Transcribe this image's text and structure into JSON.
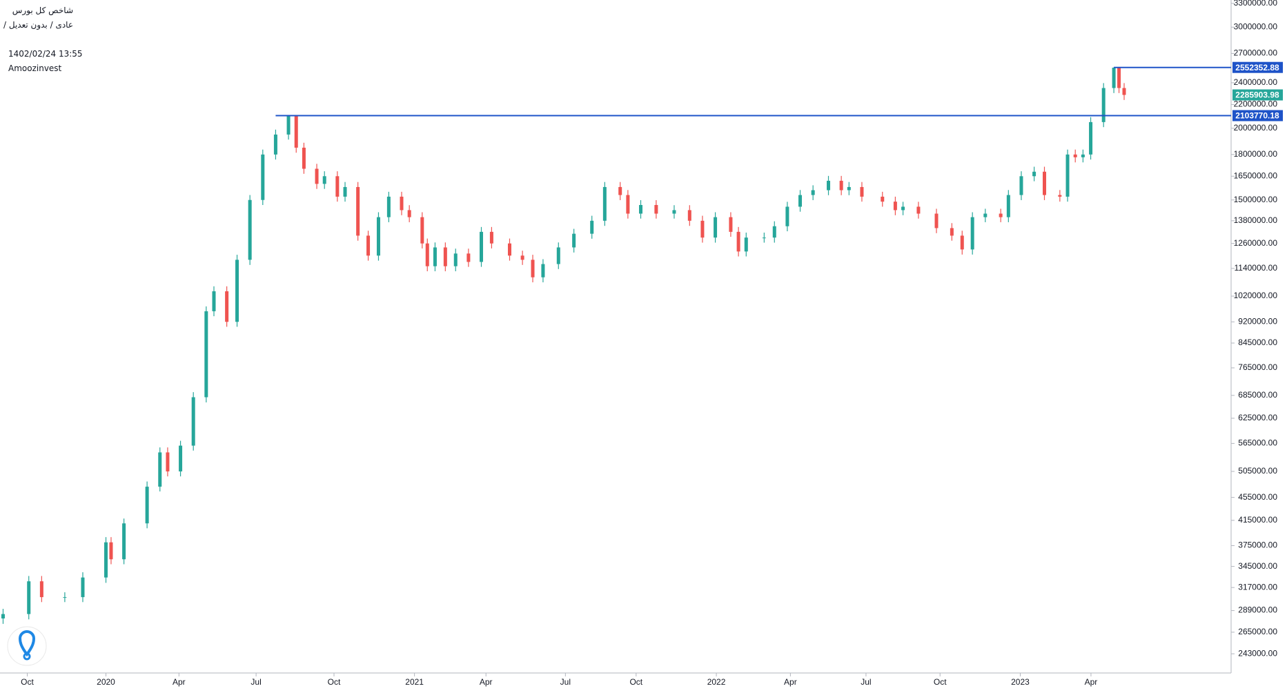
{
  "chart_data": {
    "type": "candlestick",
    "title": "شاخص کل بورس",
    "subtitle": "عادی / بدون تعدیل /",
    "timestamp": "1402/02/24 13:55",
    "watermark": "Amoozinvest",
    "log_scale": true,
    "up_color": "#26a69a",
    "down_color": "#ef5350",
    "xlim": [
      -4.12,
      43.76
    ],
    "ylim": [
      225000,
      3345000
    ],
    "xticks": [
      {
        "value": -3.06,
        "label": "Oct"
      },
      {
        "value": 0,
        "label": "2020"
      },
      {
        "value": 2.84,
        "label": "Apr"
      },
      {
        "value": 5.84,
        "label": "Jul"
      },
      {
        "value": 8.87,
        "label": "Oct"
      },
      {
        "value": 12,
        "label": "2021"
      },
      {
        "value": 14.78,
        "label": "Apr"
      },
      {
        "value": 17.87,
        "label": "Jul"
      },
      {
        "value": 20.62,
        "label": "Oct"
      },
      {
        "value": 23.74,
        "label": "2022"
      },
      {
        "value": 26.62,
        "label": "Apr"
      },
      {
        "value": 29.56,
        "label": "Jul"
      },
      {
        "value": 32.44,
        "label": "Oct"
      },
      {
        "value": 35.56,
        "label": "2023"
      },
      {
        "value": 38.31,
        "label": "Apr"
      }
    ],
    "yticks": [
      {
        "value": 3300000,
        "label": "3300000.00"
      },
      {
        "value": 3000000,
        "label": "3000000.00"
      },
      {
        "value": 2700000,
        "label": "2700000.00"
      },
      {
        "value": 2400000,
        "label": "2400000.00"
      },
      {
        "value": 2200000,
        "label": "2200000.00"
      },
      {
        "value": 2000000,
        "label": "2000000.00"
      },
      {
        "value": 1800000,
        "label": "1800000.00"
      },
      {
        "value": 1650000,
        "label": "1650000.00"
      },
      {
        "value": 1500000,
        "label": "1500000.00"
      },
      {
        "value": 1380000,
        "label": "1380000.00"
      },
      {
        "value": 1260000,
        "label": "1260000.00"
      },
      {
        "value": 1140000,
        "label": "1140000.00"
      },
      {
        "value": 1020000,
        "label": "1020000.00"
      },
      {
        "value": 920000,
        "label": "920000.00"
      },
      {
        "value": 845000,
        "label": "845000.00"
      },
      {
        "value": 765000,
        "label": "765000.00"
      },
      {
        "value": 685000,
        "label": "685000.00"
      },
      {
        "value": 625000,
        "label": "625000.00"
      },
      {
        "value": 565000,
        "label": "565000.00"
      },
      {
        "value": 505000,
        "label": "505000.00"
      },
      {
        "value": 455000,
        "label": "455000.00"
      },
      {
        "value": 415000,
        "label": "415000.00"
      },
      {
        "value": 375000,
        "label": "375000.00"
      },
      {
        "value": 345000,
        "label": "345000.00"
      },
      {
        "value": 317000,
        "label": "317000.00"
      },
      {
        "value": 289000,
        "label": "289000.00"
      },
      {
        "value": 265000,
        "label": "265000.00"
      },
      {
        "value": 243000,
        "label": "243000.00"
      }
    ],
    "x": [
      -4.0,
      -3.0,
      -2.5,
      -1.6,
      -0.9,
      0.0,
      0.2,
      0.7,
      1.6,
      2.1,
      2.4,
      2.9,
      3.4,
      3.9,
      4.2,
      4.7,
      5.1,
      5.6,
      6.1,
      6.6,
      7.1,
      7.4,
      7.7,
      8.2,
      8.5,
      9.0,
      9.3,
      9.8,
      10.2,
      10.6,
      11.0,
      11.5,
      11.8,
      12.3,
      12.5,
      12.8,
      13.2,
      13.6,
      14.1,
      14.6,
      15.0,
      15.7,
      16.2,
      16.6,
      17.0,
      17.6,
      18.2,
      18.9,
      19.4,
      20.0,
      20.3,
      20.8,
      21.4,
      22.1,
      22.7,
      23.2,
      23.7,
      24.3,
      24.6,
      24.9,
      25.6,
      26.0,
      26.5,
      27.0,
      27.5,
      28.1,
      28.6,
      28.9,
      29.4,
      30.2,
      30.7,
      31.0,
      31.6,
      32.3,
      32.9,
      33.3,
      33.7,
      34.2,
      34.8,
      35.1,
      35.6,
      36.1,
      36.5,
      37.1,
      37.4,
      37.7,
      38.0,
      38.3,
      38.8,
      39.2,
      39.4,
      39.6
    ],
    "open": [
      280000,
      285000,
      325000,
      305000,
      305000,
      330000,
      380000,
      355000,
      410000,
      475000,
      545000,
      505000,
      560000,
      680000,
      960000,
      1040000,
      920000,
      1180000,
      1500000,
      1800000,
      1950000,
      2100000,
      1850000,
      1700000,
      1600000,
      1650000,
      1520000,
      1580000,
      1300000,
      1200000,
      1400000,
      1520000,
      1440000,
      1400000,
      1260000,
      1150000,
      1240000,
      1150000,
      1210000,
      1170000,
      1320000,
      1260000,
      1200000,
      1180000,
      1100000,
      1160000,
      1240000,
      1310000,
      1380000,
      1580000,
      1530000,
      1420000,
      1470000,
      1420000,
      1440000,
      1380000,
      1290000,
      1400000,
      1320000,
      1220000,
      1290000,
      1290000,
      1350000,
      1460000,
      1530000,
      1560000,
      1620000,
      1560000,
      1580000,
      1520000,
      1490000,
      1440000,
      1460000,
      1420000,
      1340000,
      1300000,
      1230000,
      1400000,
      1420000,
      1400000,
      1530000,
      1650000,
      1680000,
      1530000,
      1520000,
      1800000,
      1780000,
      1800000,
      2050000,
      2350000,
      2550000,
      2350000
    ],
    "high": [
      291000,
      332000,
      332000,
      311000,
      337000,
      388000,
      388000,
      418000,
      485000,
      556000,
      556000,
      571000,
      694000,
      979000,
      1061000,
      1061000,
      1204000,
      1530000,
      1836000,
      1989000,
      2104000,
      2104000,
      1887000,
      1734000,
      1683000,
      1683000,
      1612000,
      1612000,
      1326000,
      1428000,
      1550000,
      1550000,
      1469000,
      1428000,
      1285000,
      1265000,
      1265000,
      1234000,
      1234000,
      1346000,
      1346000,
      1285000,
      1224000,
      1204000,
      1183000,
      1265000,
      1336000,
      1408000,
      1612000,
      1612000,
      1561000,
      1499000,
      1499000,
      1469000,
      1469000,
      1408000,
      1428000,
      1428000,
      1346000,
      1316000,
      1316000,
      1377000,
      1489000,
      1561000,
      1591000,
      1652000,
      1652000,
      1612000,
      1612000,
      1550000,
      1520000,
      1489000,
      1489000,
      1448000,
      1367000,
      1326000,
      1428000,
      1448000,
      1448000,
      1561000,
      1683000,
      1714000,
      1714000,
      1561000,
      1836000,
      1836000,
      1836000,
      2091000,
      2397000,
      2552000,
      2552000,
      2397000
    ],
    "low": [
      274000,
      279000,
      299000,
      299000,
      299000,
      323000,
      348000,
      348000,
      402000,
      466000,
      495000,
      495000,
      549000,
      666000,
      941000,
      902000,
      902000,
      1156000,
      1470000,
      1764000,
      1911000,
      1813000,
      1666000,
      1568000,
      1568000,
      1490000,
      1490000,
      1274000,
      1176000,
      1176000,
      1372000,
      1411000,
      1372000,
      1235000,
      1127000,
      1127000,
      1127000,
      1127000,
      1147000,
      1147000,
      1235000,
      1176000,
      1156000,
      1078000,
      1078000,
      1137000,
      1215000,
      1284000,
      1352000,
      1499000,
      1392000,
      1392000,
      1392000,
      1392000,
      1352000,
      1264000,
      1264000,
      1294000,
      1196000,
      1196000,
      1264000,
      1264000,
      1323000,
      1431000,
      1499000,
      1529000,
      1529000,
      1529000,
      1490000,
      1460000,
      1411000,
      1411000,
      1392000,
      1313000,
      1274000,
      1205000,
      1205000,
      1372000,
      1372000,
      1372000,
      1499000,
      1617000,
      1499000,
      1490000,
      1490000,
      1744000,
      1744000,
      1764000,
      2009000,
      2303000,
      2303000,
      2240000
    ],
    "close": [
      285000,
      325000,
      305000,
      305000,
      330000,
      380000,
      355000,
      410000,
      475000,
      545000,
      505000,
      560000,
      680000,
      960000,
      1040000,
      920000,
      1180000,
      1500000,
      1800000,
      1950000,
      2100000,
      1850000,
      1700000,
      1600000,
      1650000,
      1520000,
      1580000,
      1300000,
      1200000,
      1400000,
      1520000,
      1440000,
      1400000,
      1260000,
      1150000,
      1240000,
      1150000,
      1210000,
      1170000,
      1320000,
      1260000,
      1200000,
      1180000,
      1100000,
      1160000,
      1240000,
      1310000,
      1380000,
      1580000,
      1530000,
      1420000,
      1470000,
      1420000,
      1440000,
      1380000,
      1290000,
      1400000,
      1320000,
      1220000,
      1290000,
      1290000,
      1350000,
      1460000,
      1530000,
      1560000,
      1620000,
      1560000,
      1580000,
      1520000,
      1490000,
      1440000,
      1460000,
      1420000,
      1340000,
      1300000,
      1230000,
      1400000,
      1420000,
      1400000,
      1530000,
      1650000,
      1680000,
      1530000,
      1520000,
      1800000,
      1780000,
      1800000,
      2050000,
      2350000,
      2550000,
      2350000,
      2285903.98
    ],
    "levels": [
      {
        "value": 2552352.88,
        "x_start": 39.2,
        "color": "#1e53c8"
      },
      {
        "value": 2103770.18,
        "x_start": 6.6,
        "color": "#1e53c8"
      }
    ]
  }
}
